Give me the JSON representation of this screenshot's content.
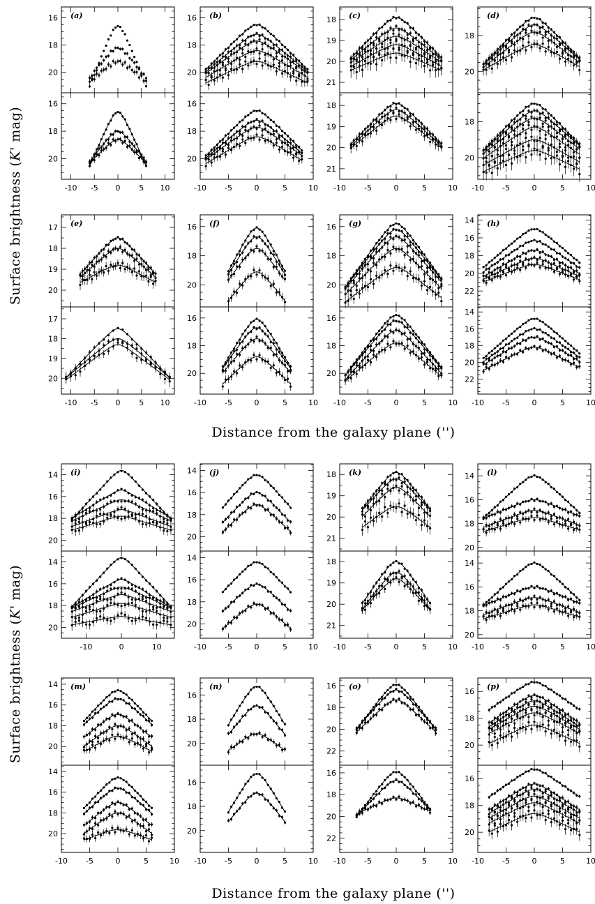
{
  "figure": {
    "xlabel": "Distance from the galaxy plane ('')",
    "ylabel_pre": "Surface brightness (",
    "ylabel_k": "K",
    "ylabel_post": "' mag)"
  },
  "chart_data": {
    "type": "scatter",
    "xlabel": "Distance from the galaxy plane ('')",
    "ylabel": "Surface brightness (K' mag)",
    "y_inverted": true,
    "panels": [
      {
        "label": "(a)",
        "xlim": [
          -12,
          12
        ],
        "xticks": [
          -10,
          -5,
          0,
          5,
          10
        ],
        "ylim": [
          21.5,
          15.2
        ],
        "yticks": [
          16,
          18,
          20
        ],
        "top": {
          "xrange": [
            -6,
            6
          ],
          "peaks": [
            16.6,
            18.2,
            19.2
          ],
          "slopes": [
            0.9,
            0.45,
            0.3
          ],
          "has_line": false
        },
        "bottom": {
          "xrange": [
            -6,
            6
          ],
          "peaks": [
            16.6,
            18.0,
            18.6
          ],
          "slopes": [
            0.8,
            0.45,
            0.35
          ],
          "has_line": true
        }
      },
      {
        "label": "(b)",
        "xlim": [
          -10,
          10
        ],
        "xticks": [
          -10,
          -5,
          0,
          5,
          10
        ],
        "ylim": [
          21.5,
          15.2
        ],
        "yticks": [
          16,
          18,
          20
        ],
        "top": {
          "xrange": [
            -9,
            9
          ],
          "peaks": [
            16.5,
            17.2,
            17.7,
            18.4,
            19.2
          ],
          "slopes": [
            0.42,
            0.35,
            0.3,
            0.25,
            0.2
          ],
          "has_line": true
        },
        "bottom": {
          "xrange": [
            -9,
            8
          ],
          "peaks": [
            16.5,
            17.2,
            17.7,
            18.4
          ],
          "slopes": [
            0.42,
            0.35,
            0.3,
            0.25
          ],
          "has_line": true
        }
      },
      {
        "label": "(c)",
        "xlim": [
          -10,
          10
        ],
        "xticks": [
          -10,
          -5,
          0,
          5,
          10
        ],
        "ylim": [
          21.5,
          17.4
        ],
        "yticks": [
          18,
          19,
          20,
          21
        ],
        "top": {
          "xrange": [
            -8,
            8
          ],
          "peaks": [
            17.9,
            18.4,
            18.8,
            19.2,
            19.6
          ],
          "slopes": [
            0.28,
            0.22,
            0.18,
            0.15,
            0.12
          ],
          "has_line": true
        },
        "bottom": {
          "xrange": [
            -8,
            8
          ],
          "peaks": [
            17.9,
            18.2,
            18.5
          ],
          "slopes": [
            0.28,
            0.25,
            0.22
          ],
          "has_line": true
        }
      },
      {
        "label": "(d)",
        "xlim": [
          -10,
          10
        ],
        "xticks": [
          -10,
          -5,
          0,
          5,
          10
        ],
        "ylim": [
          21.2,
          16.4
        ],
        "yticks": [
          18,
          20
        ],
        "top": {
          "xrange": [
            -9,
            8
          ],
          "peaks": [
            17.0,
            17.4,
            17.8,
            18.5
          ],
          "slopes": [
            0.33,
            0.28,
            0.25,
            0.18
          ],
          "has_line": true
        },
        "bottom": {
          "xrange": [
            -9,
            8
          ],
          "peaks": [
            17.0,
            17.4,
            17.8,
            18.3,
            19.0,
            19.6
          ],
          "slopes": [
            0.33,
            0.28,
            0.25,
            0.22,
            0.18,
            0.15
          ],
          "has_line": true
        }
      },
      {
        "label": "(e)",
        "xlim": [
          -12,
          12
        ],
        "xticks": [
          -10,
          -5,
          0,
          5,
          10
        ],
        "ylim": [
          20.8,
          16.4
        ],
        "yticks": [
          17,
          18,
          19,
          20
        ],
        "top": {
          "xrange": [
            -8,
            8
          ],
          "peaks": [
            17.5,
            18.0,
            18.8
          ],
          "slopes": [
            0.25,
            0.2,
            0.12
          ],
          "has_line": true
        },
        "bottom": {
          "xrange": [
            -11,
            11
          ],
          "peaks": [
            17.5,
            18.0,
            18.3
          ],
          "slopes": [
            0.25,
            0.2,
            0.18
          ],
          "has_line": true
        }
      },
      {
        "label": "(f)",
        "xlim": [
          -10,
          10
        ],
        "xticks": [
          -10,
          -5,
          0,
          5,
          10
        ],
        "ylim": [
          21.5,
          15.2
        ],
        "yticks": [
          16,
          18,
          20
        ],
        "top": {
          "xrange": [
            -5,
            5
          ],
          "peaks": [
            16.1,
            16.7,
            17.5,
            19.1
          ],
          "slopes": [
            0.75,
            0.65,
            0.55,
            0.5
          ],
          "has_line": true
        },
        "bottom": {
          "xrange": [
            -6,
            6
          ],
          "peaks": [
            16.1,
            16.7,
            17.5,
            18.8
          ],
          "slopes": [
            0.7,
            0.6,
            0.5,
            0.4
          ],
          "has_line": true
        }
      },
      {
        "label": "(g)",
        "xlim": [
          -10,
          10
        ],
        "xticks": [
          -10,
          -5,
          0,
          5,
          10
        ],
        "ylim": [
          21.5,
          15.2
        ],
        "yticks": [
          16,
          18,
          20
        ],
        "top": {
          "xrange": [
            -9,
            8
          ],
          "peaks": [
            15.8,
            16.2,
            16.7,
            17.5,
            18.8
          ],
          "slopes": [
            0.55,
            0.5,
            0.45,
            0.4,
            0.3
          ],
          "has_line": true
        },
        "bottom": {
          "xrange": [
            -9,
            8
          ],
          "peaks": [
            15.8,
            16.2,
            16.9,
            17.8
          ],
          "slopes": [
            0.55,
            0.5,
            0.45,
            0.35
          ],
          "has_line": true
        }
      },
      {
        "label": "(h)",
        "xlim": [
          -10,
          10
        ],
        "xticks": [
          -10,
          -5,
          0,
          5,
          10
        ],
        "ylim": [
          23.8,
          13.4
        ],
        "yticks": [
          14,
          16,
          18,
          20,
          22
        ],
        "top": {
          "xrange": [
            -9,
            8
          ],
          "peaks": [
            15.0,
            16.3,
            17.4,
            18.3,
            19.0
          ],
          "slopes": [
            0.55,
            0.45,
            0.38,
            0.3,
            0.25
          ],
          "has_line": true
        },
        "bottom": {
          "xrange": [
            -9,
            8
          ],
          "peaks": [
            14.8,
            16.0,
            17.0,
            18.2
          ],
          "slopes": [
            0.6,
            0.5,
            0.42,
            0.35
          ],
          "has_line": true
        }
      },
      {
        "label": "(i)",
        "xlim": [
          -17,
          15
        ],
        "xticks": [
          -10,
          0,
          10
        ],
        "ylim": [
          21.0,
          13.0
        ],
        "yticks": [
          14,
          16,
          18,
          20
        ],
        "top": {
          "xrange": [
            -14,
            14
          ],
          "peaks": [
            13.6,
            15.4,
            16.3,
            17.2,
            17.8
          ],
          "slopes": [
            0.35,
            0.2,
            0.15,
            0.12,
            0.1
          ],
          "has_line": true
        },
        "bottom": {
          "xrange": [
            -14,
            14
          ],
          "peaks": [
            13.6,
            15.6,
            16.3,
            17.0,
            17.8,
            19.0
          ],
          "slopes": [
            0.35,
            0.2,
            0.15,
            0.12,
            0.1,
            0.06
          ],
          "has_line": true
        }
      },
      {
        "label": "(j)",
        "xlim": [
          -10,
          10
        ],
        "xticks": [
          -10,
          -5,
          0,
          5,
          10
        ],
        "ylim": [
          21.3,
          13.4
        ],
        "yticks": [
          14,
          16,
          18,
          20
        ],
        "top": {
          "xrange": [
            -6,
            6
          ],
          "peaks": [
            14.4,
            16.0,
            17.1
          ],
          "slopes": [
            0.6,
            0.55,
            0.5
          ],
          "has_line": true
        },
        "bottom": {
          "xrange": [
            -6,
            6
          ],
          "peaks": [
            14.4,
            16.4,
            18.2
          ],
          "slopes": [
            0.55,
            0.5,
            0.45
          ],
          "has_line": true
        }
      },
      {
        "label": "(k)",
        "xlim": [
          -10,
          10
        ],
        "xticks": [
          -10,
          -5,
          0,
          5,
          10
        ],
        "ylim": [
          21.6,
          17.5
        ],
        "yticks": [
          18,
          19,
          20,
          21
        ],
        "top": {
          "xrange": [
            -6,
            6
          ],
          "peaks": [
            17.9,
            18.2,
            18.6,
            19.5
          ],
          "slopes": [
            0.35,
            0.3,
            0.28,
            0.2
          ],
          "has_line": true
        },
        "bottom": {
          "xrange": [
            -6,
            6
          ],
          "peaks": [
            18.0,
            18.5,
            18.8
          ],
          "slopes": [
            0.4,
            0.35,
            0.3
          ],
          "has_line": true
        }
      },
      {
        "label": "(l)",
        "xlim": [
          -10,
          10
        ],
        "xticks": [
          -10,
          -5,
          0,
          5,
          10
        ],
        "ylim": [
          20.3,
          13.0
        ],
        "yticks": [
          14,
          16,
          18,
          20
        ],
        "top": {
          "xrange": [
            -9,
            8
          ],
          "peaks": [
            14.0,
            16.0,
            16.9,
            17.5
          ],
          "slopes": [
            0.45,
            0.2,
            0.18,
            0.15
          ],
          "has_line": true
        },
        "bottom": {
          "xrange": [
            -9,
            8
          ],
          "peaks": [
            14.0,
            16.0,
            16.9,
            17.5
          ],
          "slopes": [
            0.45,
            0.2,
            0.18,
            0.15
          ],
          "has_line": true
        }
      },
      {
        "label": "(m)",
        "xlim": [
          -10,
          10
        ],
        "xticks": [
          -10,
          -5,
          0,
          5,
          10
        ],
        "ylim": [
          21.8,
          13.4
        ],
        "yticks": [
          14,
          16,
          18,
          20
        ],
        "top": {
          "xrange": [
            -6,
            6
          ],
          "peaks": [
            14.6,
            15.4,
            16.9,
            18.0,
            19.0
          ],
          "slopes": [
            0.6,
            0.5,
            0.45,
            0.4,
            0.3
          ],
          "has_line": true
        },
        "bottom": {
          "xrange": [
            -6,
            6
          ],
          "peaks": [
            14.6,
            15.6,
            17.0,
            18.0,
            19.6
          ],
          "slopes": [
            0.6,
            0.5,
            0.45,
            0.4,
            0.2
          ],
          "has_line": true
        }
      },
      {
        "label": "(n)",
        "xlim": [
          -10,
          10
        ],
        "xticks": [
          -10,
          -5,
          0,
          5,
          10
        ],
        "ylim": [
          21.8,
          14.6
        ],
        "yticks": [
          16,
          18,
          20
        ],
        "top": {
          "xrange": [
            -5,
            5
          ],
          "peaks": [
            15.3,
            16.9,
            19.2
          ],
          "slopes": [
            0.8,
            0.6,
            0.35
          ],
          "has_line": true
        },
        "bottom": {
          "xrange": [
            -5,
            5
          ],
          "peaks": [
            15.3,
            16.9
          ],
          "slopes": [
            0.8,
            0.6
          ],
          "has_line": true
        }
      },
      {
        "label": "(o)",
        "xlim": [
          -10,
          10
        ],
        "xticks": [
          -10,
          -5,
          0,
          5,
          10
        ],
        "ylim": [
          23.3,
          15.3
        ],
        "yticks": [
          16,
          18,
          20,
          22
        ],
        "top": {
          "xrange": [
            -7,
            7
          ],
          "peaks": [
            15.9,
            16.4,
            17.3
          ],
          "slopes": [
            0.7,
            0.6,
            0.5
          ],
          "has_line": true
        },
        "bottom": {
          "xrange": [
            -7,
            6
          ],
          "peaks": [
            15.9,
            16.7,
            18.3
          ],
          "slopes": [
            0.7,
            0.55,
            0.25
          ],
          "has_line": true
        }
      },
      {
        "label": "(p)",
        "xlim": [
          -10,
          10
        ],
        "xticks": [
          -10,
          -5,
          0,
          5,
          10
        ],
        "ylim": [
          21.5,
          15.0
        ],
        "yticks": [
          16,
          18,
          20
        ],
        "top": {
          "xrange": [
            -8,
            8
          ],
          "peaks": [
            15.3,
            16.3,
            16.7,
            17.1,
            17.6,
            18.5
          ],
          "slopes": [
            0.3,
            0.3,
            0.28,
            0.25,
            0.22,
            0.2
          ],
          "has_line": true
        },
        "bottom": {
          "xrange": [
            -8,
            8
          ],
          "peaks": [
            15.3,
            16.4,
            16.8,
            17.3,
            17.8,
            18.6
          ],
          "slopes": [
            0.3,
            0.28,
            0.26,
            0.24,
            0.22,
            0.2
          ],
          "has_line": true
        }
      }
    ]
  }
}
